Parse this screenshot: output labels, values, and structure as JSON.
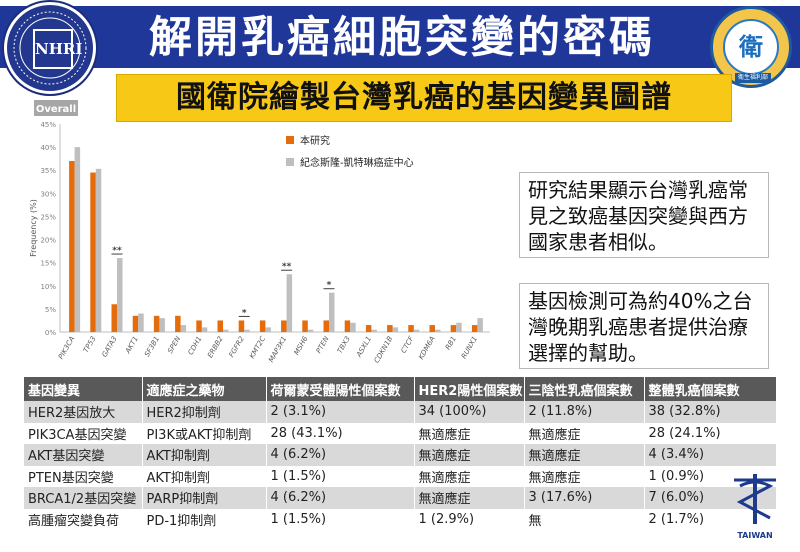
{
  "header": {
    "title": "解開乳癌細胞突變的密碼",
    "subtitle": "國衛院繪製台灣乳癌的基因變異圖譜",
    "left_logo_emblem": "NHRI",
    "right_logo_text": "衛",
    "right_logo_label": "衛生福利部"
  },
  "chart_data": {
    "type": "bar",
    "title": "Overall",
    "ylabel": "Frequency (%)",
    "xlabel": "",
    "ylim": [
      0,
      45
    ],
    "yticks": [
      "0%",
      "5%",
      "10%",
      "15%",
      "20%",
      "25%",
      "30%",
      "35%",
      "40%",
      "45%"
    ],
    "grid": false,
    "legend_position": "top-right",
    "categories": [
      "PIK3CA",
      "TP53",
      "GATA3",
      "AKT1",
      "SF3B1",
      "SPEN",
      "CDH1",
      "ERBB2",
      "FGFR2",
      "KMT2C",
      "MAP3K1",
      "MSH6",
      "PTEN",
      "TBX3",
      "ASXL1",
      "CDKN1B",
      "CTCF",
      "KDM6A",
      "RB1",
      "RUNX1"
    ],
    "series": [
      {
        "name": "本研究",
        "color": "#e46c0a",
        "values": [
          37.0,
          34.5,
          6.0,
          3.5,
          3.5,
          3.5,
          2.5,
          2.5,
          2.5,
          2.5,
          2.5,
          2.5,
          2.5,
          2.5,
          1.5,
          1.5,
          1.5,
          1.5,
          1.5,
          1.5
        ]
      },
      {
        "name": "紀念斯隆-凱特琳癌症中心",
        "color": "#bfbfbf",
        "values": [
          40.0,
          35.3,
          16.0,
          4.0,
          3.0,
          1.5,
          1.0,
          0.5,
          0.5,
          1.0,
          12.5,
          0.5,
          8.5,
          2.0,
          0.5,
          1.0,
          0.5,
          0.5,
          2.0,
          3.0
        ]
      }
    ],
    "annotations": [
      {
        "category": "GATA3",
        "text": "**"
      },
      {
        "category": "FGFR2",
        "text": "*"
      },
      {
        "category": "MAP3K1",
        "text": "**"
      },
      {
        "category": "PTEN",
        "text": "*"
      }
    ]
  },
  "callouts": {
    "first": "研究結果顯示台灣乳癌常見之致癌基因突變與西方國家患者相似。",
    "second": "基因檢測可為約40%之台灣晚期乳癌患者提供治療選擇的幫助。"
  },
  "table": {
    "headers": [
      "基因變異",
      "適應症之藥物",
      "荷爾蒙受體陽性個案數",
      "HER2陽性個案數",
      "三陰性乳癌個案數",
      "整體乳癌個案數"
    ],
    "rows": [
      [
        "HER2基因放大",
        "HER2抑制劑",
        "2 (3.1%)",
        "34 (100%)",
        "2 (11.8%)",
        "38 (32.8%)"
      ],
      [
        "PIK3CA基因突變",
        "PI3K或AKT抑制劑",
        "28 (43.1%)",
        "無適應症",
        "無適應症",
        "28 (24.1%)"
      ],
      [
        "AKT基因突變",
        "AKT抑制劑",
        "4 (6.2%)",
        "無適應症",
        "無適應症",
        "4 (3.4%)"
      ],
      [
        "PTEN基因突變",
        "AKT抑制劑",
        "1 (1.5%)",
        "無適應症",
        "無適應症",
        "1 (0.9%)"
      ],
      [
        "BRCA1/2基因突變",
        "PARP抑制劑",
        "4 (6.2%)",
        "無適應症",
        "3 (17.6%)",
        "7 (6.0%)"
      ],
      [
        "高腫瘤突變負荷",
        "PD-1抑制劑",
        "1 (1.5%)",
        "1 (2.9%)",
        "無",
        "2 (1.7%)"
      ]
    ]
  },
  "footer_logo": {
    "name": "衛福部",
    "word": "TAIWAN"
  },
  "colors": {
    "header_band": "#20379a",
    "subtitle_bg": "#f7c916",
    "series_1": "#e46c0a",
    "series_2": "#bfbfbf",
    "table_header": "#595959"
  }
}
